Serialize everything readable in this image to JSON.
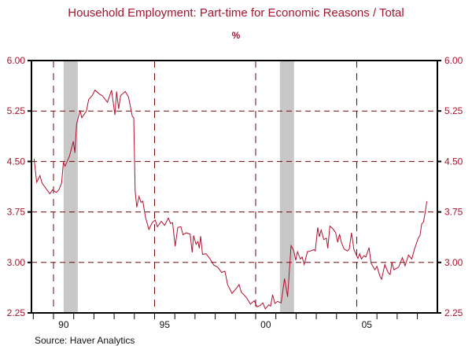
{
  "chart_data": {
    "type": "line",
    "title": "Household Employment: Part-time for Economic Reasons / Total",
    "unit_label": "%",
    "source": "Source: Haver Analytics",
    "xlim": [
      1988.91,
      2008.99
    ],
    "ylim": [
      2.25,
      6.0
    ],
    "yticks": [
      6.0,
      5.25,
      4.5,
      3.75,
      3.0,
      2.25
    ],
    "ytick_labels": [
      "6.00",
      "5.25",
      "4.50",
      "3.75",
      "3.00",
      "2.25"
    ],
    "xtick_labels": [
      {
        "year": 1990,
        "label": "90"
      },
      {
        "year": 1995,
        "label": "95"
      },
      {
        "year": 2000,
        "label": "00"
      },
      {
        "year": 2005,
        "label": "05"
      }
    ],
    "grid": true,
    "grid_style": "dashed",
    "axis_on_both_sides": true,
    "recessions": [
      [
        1990.5,
        1991.2
      ],
      [
        2001.2,
        2001.9
      ]
    ],
    "colors": {
      "line": "#b01030",
      "grid": "#6b0a0a",
      "recession": "#c8c8c8",
      "text": "#a3152f"
    },
    "series": [
      {
        "x": [
          1989.04,
          1989.17,
          1989.33,
          1989.43,
          1989.82,
          1989.95,
          1990.14,
          1990.27,
          1990.4,
          1990.49,
          1990.57,
          1990.79,
          1990.98,
          1991.06,
          1991.14,
          1991.31,
          1991.4,
          1991.63,
          1991.74,
          1991.92,
          1992.05,
          1992.28,
          1992.41,
          1992.67,
          1992.87,
          1993.04,
          1993.12,
          1993.22,
          1993.32,
          1993.55,
          1993.71,
          1993.9,
          1993.97,
          1994.04,
          1994.12,
          1994.23,
          1994.33,
          1994.42,
          1994.55,
          1994.72,
          1994.88,
          1995.03,
          1995.14,
          1995.33,
          1995.5,
          1995.68,
          1995.79,
          1995.89,
          1996.02,
          1996.15,
          1996.3,
          1996.41,
          1996.56,
          1996.76,
          1996.86,
          1996.93,
          1997.05,
          1997.15,
          1997.21,
          1997.28,
          1997.37,
          1997.54,
          1997.73,
          1997.93,
          1998.12,
          1998.32,
          1998.48,
          1998.61,
          1998.83,
          1999.03,
          1999.18,
          1999.29,
          1999.54,
          1999.74,
          1999.93,
          2000.07,
          2000.22,
          2000.35,
          2000.48,
          2000.65,
          2000.74,
          2000.84,
          2000.95,
          2001.08,
          2001.26,
          2001.43,
          2001.58,
          2001.75,
          2001.88,
          2001.98,
          2002.07,
          2002.21,
          2002.3,
          2002.4,
          2002.56,
          2002.72,
          2002.89,
          2002.95,
          2003.07,
          2003.15,
          2003.24,
          2003.37,
          2003.5,
          2003.57,
          2003.67,
          2003.82,
          2003.96,
          2004.06,
          2004.15,
          2004.24,
          2004.37,
          2004.54,
          2004.63,
          2004.74,
          2004.86,
          2004.97,
          2005.06,
          2005.15,
          2005.23,
          2005.36,
          2005.45,
          2005.61,
          2005.71,
          2005.9,
          2006.0,
          2006.14,
          2006.23,
          2006.39,
          2006.55,
          2006.65,
          2006.74,
          2006.84,
          2007.07,
          2007.26,
          2007.39,
          2007.56,
          2007.72,
          2007.85,
          2008.04,
          2008.13,
          2008.21,
          2008.3,
          2008.39,
          2008.47
        ],
        "y": [
          4.54,
          4.19,
          4.29,
          4.18,
          4.02,
          4.08,
          4.04,
          4.08,
          4.18,
          4.49,
          4.43,
          4.58,
          4.8,
          4.63,
          5.05,
          5.26,
          5.15,
          5.25,
          5.42,
          5.48,
          5.56,
          5.5,
          5.48,
          5.38,
          5.56,
          5.19,
          5.54,
          5.28,
          5.48,
          5.54,
          5.46,
          5.17,
          5.15,
          4.06,
          3.82,
          3.98,
          3.89,
          3.91,
          3.67,
          3.49,
          3.59,
          3.63,
          3.53,
          3.61,
          3.55,
          3.66,
          3.58,
          3.59,
          3.24,
          3.52,
          3.53,
          3.41,
          3.44,
          3.42,
          3.15,
          3.4,
          3.27,
          3.31,
          3.21,
          3.39,
          3.12,
          3.13,
          3.06,
          2.96,
          2.93,
          2.85,
          2.87,
          2.67,
          2.54,
          2.61,
          2.67,
          2.56,
          2.48,
          2.38,
          2.43,
          2.34,
          2.36,
          2.4,
          2.31,
          2.37,
          2.35,
          2.52,
          2.39,
          2.42,
          2.4,
          2.76,
          2.49,
          3.25,
          3.18,
          3.03,
          3.16,
          3.05,
          3.08,
          2.97,
          3.16,
          3.17,
          3.19,
          3.17,
          3.52,
          3.38,
          3.48,
          3.34,
          3.36,
          3.21,
          3.54,
          3.5,
          3.44,
          3.3,
          3.42,
          3.3,
          3.2,
          3.17,
          3.2,
          3.44,
          3.19,
          3.12,
          3.06,
          3.13,
          3.05,
          3.1,
          3.08,
          3.22,
          2.99,
          2.89,
          2.94,
          2.8,
          2.75,
          2.97,
          2.85,
          2.82,
          3.0,
          2.89,
          2.93,
          3.07,
          2.95,
          3.11,
          3.05,
          3.19,
          3.36,
          3.4,
          3.57,
          3.6,
          3.75,
          3.91
        ]
      }
    ]
  }
}
